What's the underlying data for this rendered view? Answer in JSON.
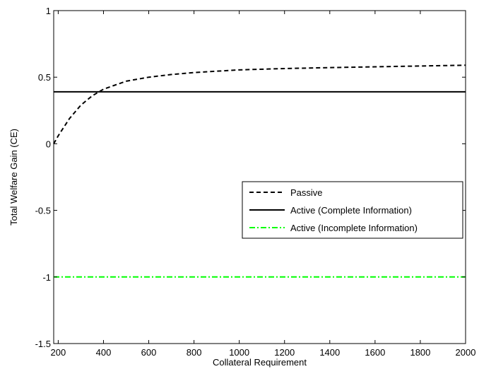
{
  "chart_data": {
    "type": "line",
    "title": "",
    "xlabel": "Collateral Requirement",
    "ylabel": "Total Welfare Gain (CE)",
    "xlim": [
      180,
      2000
    ],
    "ylim": [
      -1.5,
      1
    ],
    "x_ticks": [
      200,
      400,
      600,
      800,
      1000,
      1200,
      1400,
      1600,
      1800,
      2000
    ],
    "y_ticks": [
      1,
      0.5,
      0,
      -0.5,
      -1,
      -1.5
    ],
    "x_tick_labels": [
      "200",
      "400",
      "600",
      "800",
      "1000",
      "1200",
      "1400",
      "1600",
      "1800",
      "2000"
    ],
    "y_tick_labels": [
      "1",
      "0.5",
      "0",
      "-0.5",
      "-1",
      "-1.5"
    ],
    "grid": false,
    "legend_position": "right-middle",
    "series": [
      {
        "name": "Passive",
        "style": "dashed",
        "color": "#000000",
        "x": [
          180,
          200,
          250,
          300,
          350,
          400,
          450,
          500,
          600,
          700,
          800,
          1000,
          1200,
          1400,
          1600,
          1800,
          2000
        ],
        "y": [
          0.0,
          0.06,
          0.19,
          0.29,
          0.36,
          0.41,
          0.44,
          0.47,
          0.5,
          0.52,
          0.535,
          0.555,
          0.565,
          0.572,
          0.578,
          0.584,
          0.59
        ]
      },
      {
        "name": "Active (Complete Information)",
        "style": "solid",
        "color": "#000000",
        "x": [
          180,
          2000
        ],
        "y": [
          0.39,
          0.39
        ]
      },
      {
        "name": "Active (Incomplete Information)",
        "style": "dashdot",
        "color": "#00ff00",
        "x": [
          180,
          2000
        ],
        "y": [
          -1.0,
          -1.0
        ]
      }
    ]
  }
}
